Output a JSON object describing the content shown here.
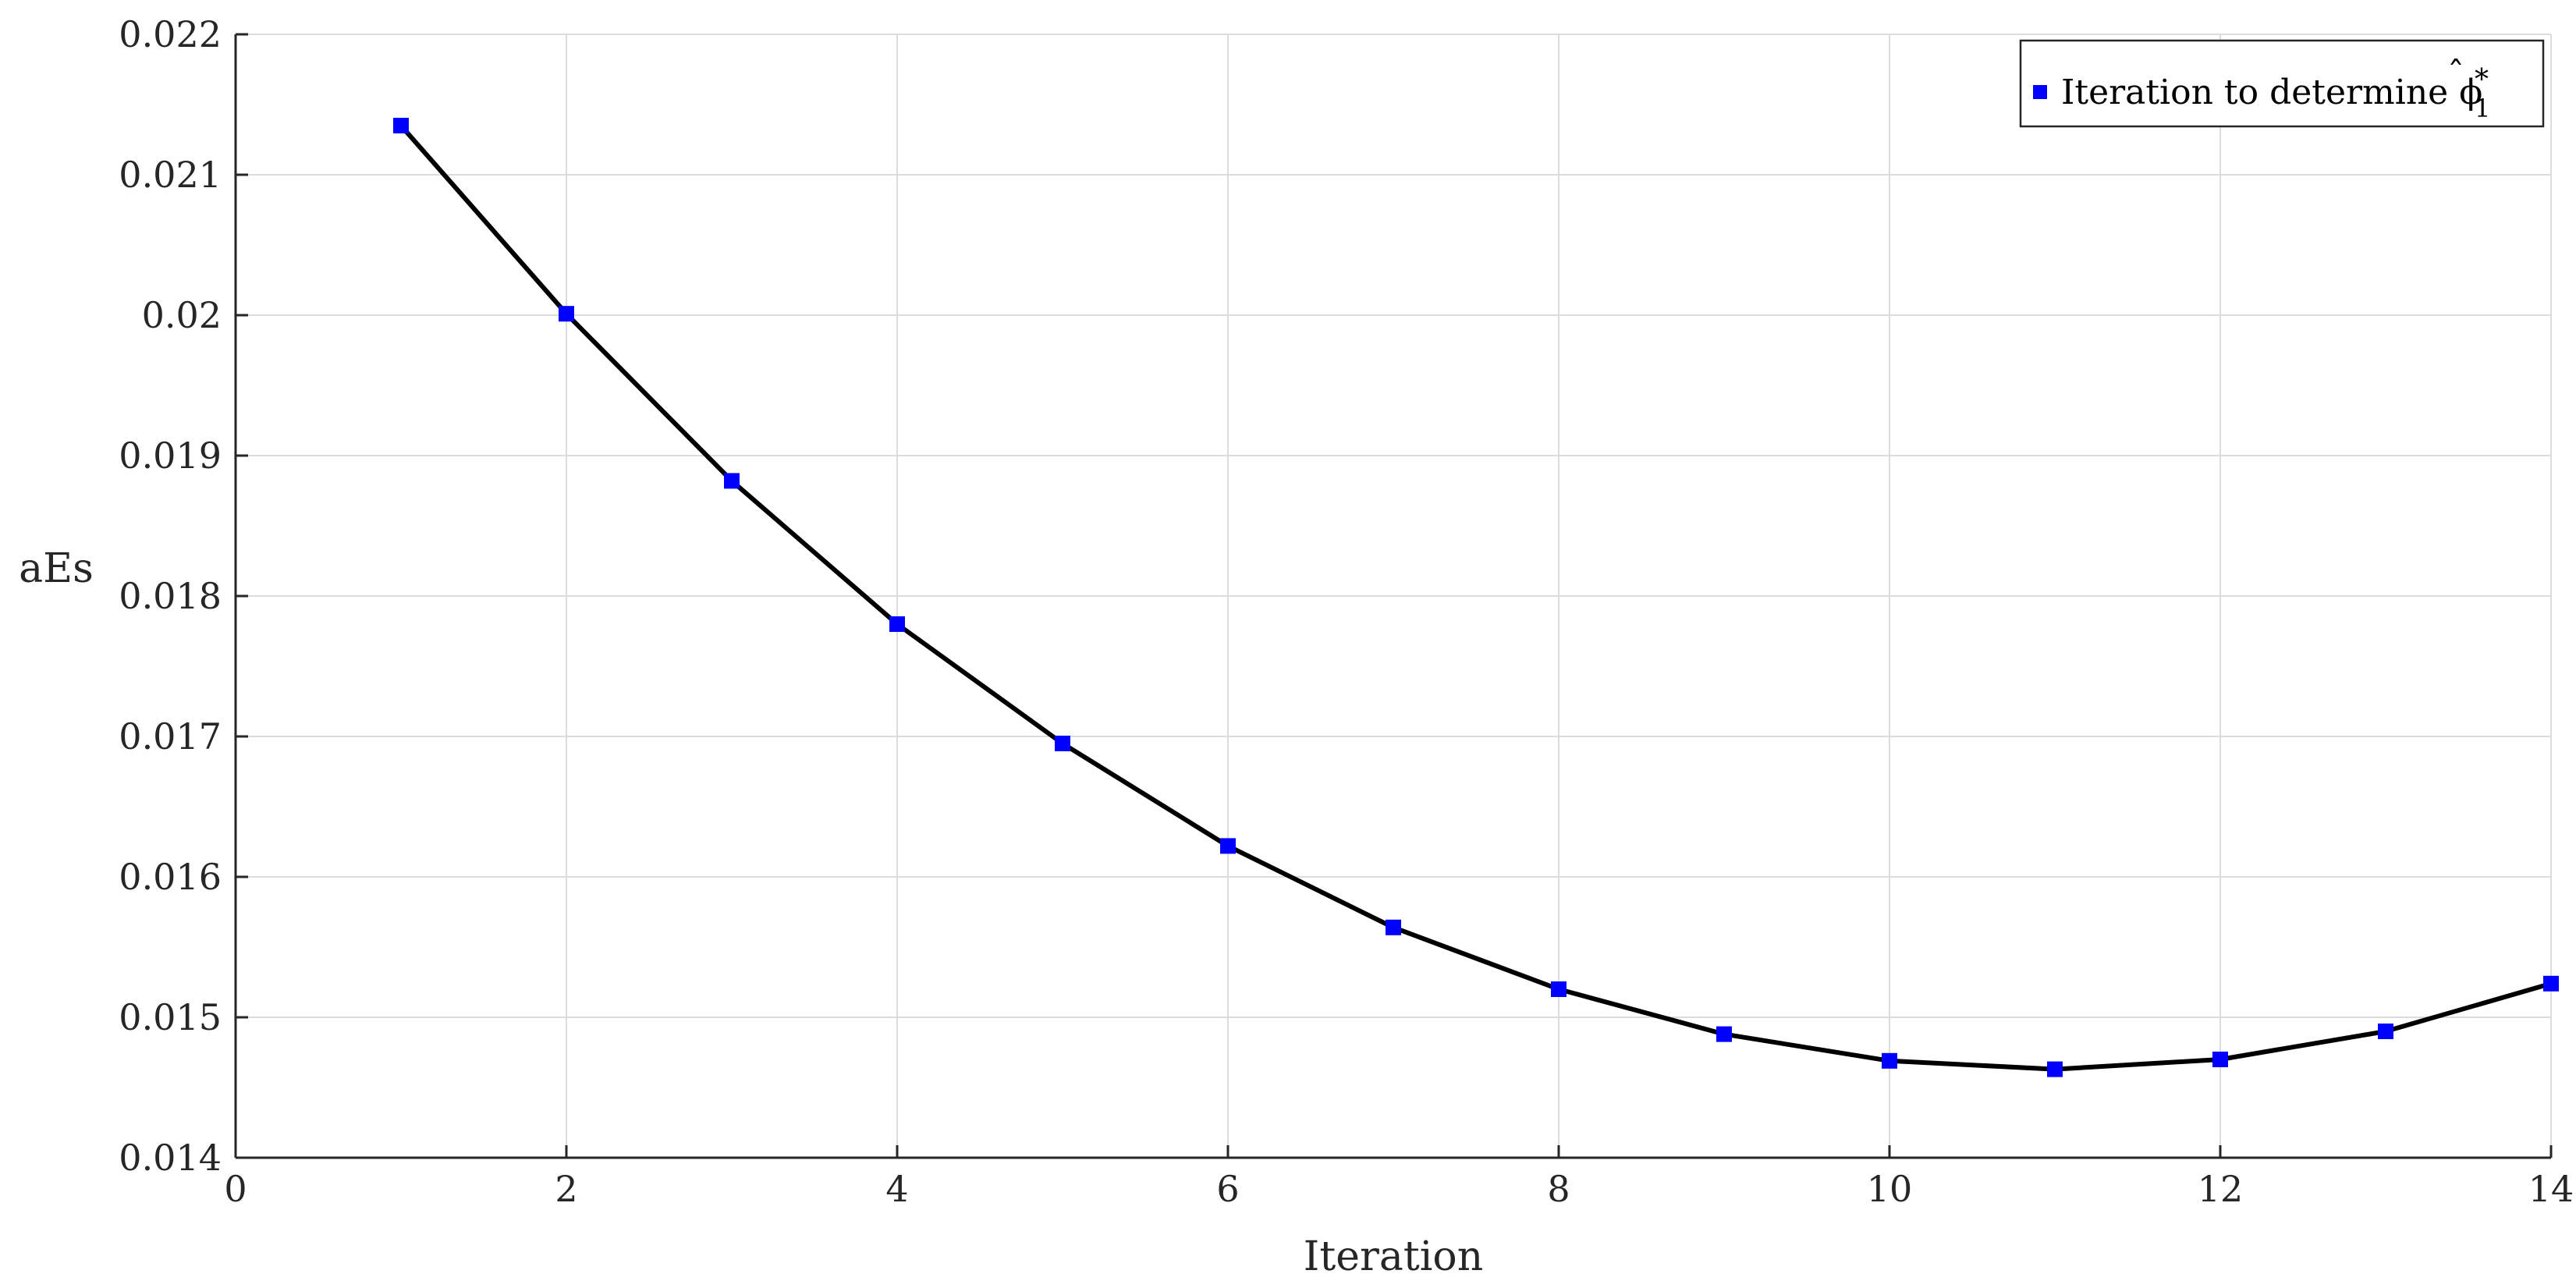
{
  "chart_data": {
    "type": "line",
    "title": "",
    "xlabel": "Iteration",
    "ylabel": "aEs",
    "xlim": [
      0,
      14
    ],
    "ylim": [
      0.014,
      0.022
    ],
    "xticks": [
      "0",
      "2",
      "4",
      "6",
      "8",
      "10",
      "12",
      "14"
    ],
    "yticks": [
      "0.014",
      "0.015",
      "0.016",
      "0.017",
      "0.018",
      "0.019",
      "0.02",
      "0.021",
      "0.022"
    ],
    "grid": true,
    "legend_position": "top-right",
    "legend": {
      "text": "Iteration to determine ",
      "symbol": "ϕ",
      "superscript": "*",
      "subscript": "1"
    },
    "series": [
      {
        "name": "Iteration to determine ϕ̂*1",
        "line_color": "#000000",
        "marker": "square",
        "marker_color": "#0000ff",
        "x": [
          1,
          2,
          3,
          4,
          5,
          6,
          7,
          8,
          9,
          10,
          11,
          12,
          13,
          14
        ],
        "y": [
          0.02135,
          0.02001,
          0.01882,
          0.0178,
          0.01695,
          0.01622,
          0.01564,
          0.0152,
          0.01488,
          0.01469,
          0.01463,
          0.0147,
          0.0149,
          0.01524
        ]
      }
    ]
  }
}
